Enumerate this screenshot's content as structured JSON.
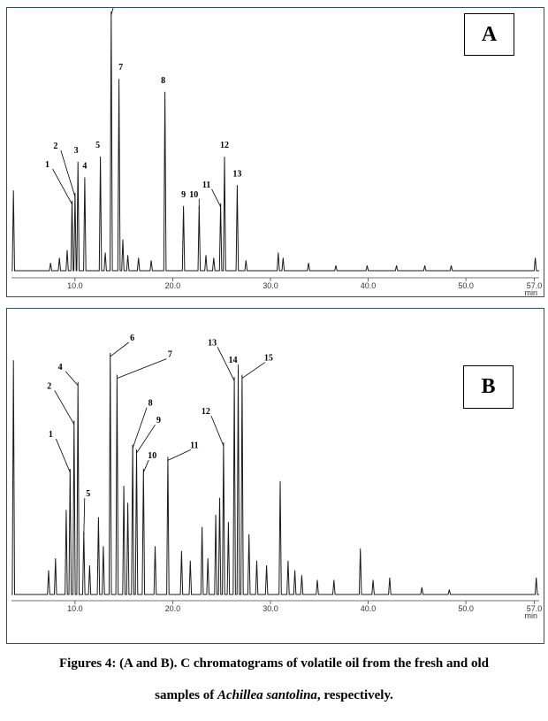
{
  "chart_data": [
    {
      "type": "line",
      "panel_label": "A",
      "x_unit_label": "min",
      "xlim": [
        3.5,
        57.5
      ],
      "x_ticks": [
        10.0,
        20.0,
        30.0,
        40.0,
        50.0,
        57.0
      ],
      "x_tick_labels": [
        "10.0",
        "20.0",
        "30.0",
        "40.0",
        "50.0",
        "57.0"
      ],
      "peaks": [
        {
          "label": "1",
          "rt": 9.7,
          "height": 0.27
        },
        {
          "label": "2",
          "rt": 10.0,
          "height": 0.3
        },
        {
          "label": "3",
          "rt": 10.3,
          "height": 0.42
        },
        {
          "label": "4",
          "rt": 11.0,
          "height": 0.36
        },
        {
          "label": "5",
          "rt": 12.6,
          "height": 0.44
        },
        {
          "label": "6",
          "rt": 13.7,
          "height": 1.0
        },
        {
          "label": "7",
          "rt": 14.5,
          "height": 0.74
        },
        {
          "label": "8",
          "rt": 19.2,
          "height": 0.69
        },
        {
          "label": "9",
          "rt": 21.1,
          "height": 0.25
        },
        {
          "label": "10",
          "rt": 22.7,
          "height": 0.25
        },
        {
          "label": "11",
          "rt": 24.9,
          "height": 0.26
        },
        {
          "label": "12",
          "rt": 25.3,
          "height": 0.44
        },
        {
          "label": "13",
          "rt": 26.6,
          "height": 0.33
        }
      ],
      "minor_peaks": [
        {
          "rt": 3.7,
          "height": 0.31
        },
        {
          "rt": 7.5,
          "height": 0.03
        },
        {
          "rt": 8.4,
          "height": 0.05
        },
        {
          "rt": 9.2,
          "height": 0.08
        },
        {
          "rt": 13.1,
          "height": 0.07
        },
        {
          "rt": 14.9,
          "height": 0.12
        },
        {
          "rt": 15.4,
          "height": 0.06
        },
        {
          "rt": 16.5,
          "height": 0.05
        },
        {
          "rt": 17.8,
          "height": 0.04
        },
        {
          "rt": 23.4,
          "height": 0.06
        },
        {
          "rt": 24.2,
          "height": 0.05
        },
        {
          "rt": 27.5,
          "height": 0.04
        },
        {
          "rt": 30.8,
          "height": 0.07
        },
        {
          "rt": 31.3,
          "height": 0.05
        },
        {
          "rt": 33.9,
          "height": 0.03
        },
        {
          "rt": 36.7,
          "height": 0.02
        },
        {
          "rt": 39.9,
          "height": 0.02
        },
        {
          "rt": 42.9,
          "height": 0.02
        },
        {
          "rt": 45.8,
          "height": 0.02
        },
        {
          "rt": 48.5,
          "height": 0.02
        },
        {
          "rt": 57.1,
          "height": 0.05
        }
      ]
    },
    {
      "type": "line",
      "panel_label": "B",
      "x_unit_label": "min",
      "xlim": [
        3.5,
        57.5
      ],
      "x_ticks": [
        10.0,
        20.0,
        30.0,
        40.0,
        50.0,
        57.0
      ],
      "x_tick_labels": [
        "10.0",
        "20.0",
        "30.0",
        "40.0",
        "50.0",
        "57.0"
      ],
      "peaks": [
        {
          "label": "1",
          "rt": 9.5,
          "height": 0.52
        },
        {
          "label": "2",
          "rt": 9.9,
          "height": 0.72
        },
        {
          "label": "4",
          "rt": 10.3,
          "height": 0.88
        },
        {
          "label": "5",
          "rt": 10.9,
          "height": 0.26
        },
        {
          "label": "6",
          "rt": 13.6,
          "height": 1.0
        },
        {
          "label": "7",
          "rt": 14.3,
          "height": 0.91
        },
        {
          "label": "8",
          "rt": 15.9,
          "height": 0.62
        },
        {
          "label": "9",
          "rt": 16.3,
          "height": 0.6
        },
        {
          "label": "10",
          "rt": 17.0,
          "height": 0.52
        },
        {
          "label": "11",
          "rt": 19.5,
          "height": 0.57
        },
        {
          "label": "12",
          "rt": 25.2,
          "height": 0.63
        },
        {
          "label": "13",
          "rt": 26.3,
          "height": 0.9
        },
        {
          "label": "14",
          "rt": 26.7,
          "height": 0.93
        },
        {
          "label": "15",
          "rt": 27.1,
          "height": 0.91
        }
      ],
      "minor_peaks": [
        {
          "rt": 3.7,
          "height": 0.97
        },
        {
          "rt": 7.3,
          "height": 0.1
        },
        {
          "rt": 8.0,
          "height": 0.15
        },
        {
          "rt": 9.1,
          "height": 0.35
        },
        {
          "rt": 11.5,
          "height": 0.12
        },
        {
          "rt": 12.4,
          "height": 0.32
        },
        {
          "rt": 12.9,
          "height": 0.2
        },
        {
          "rt": 15.0,
          "height": 0.45
        },
        {
          "rt": 15.4,
          "height": 0.38
        },
        {
          "rt": 18.2,
          "height": 0.2
        },
        {
          "rt": 20.9,
          "height": 0.18
        },
        {
          "rt": 21.8,
          "height": 0.14
        },
        {
          "rt": 23.0,
          "height": 0.28
        },
        {
          "rt": 23.6,
          "height": 0.15
        },
        {
          "rt": 24.4,
          "height": 0.33
        },
        {
          "rt": 24.8,
          "height": 0.4
        },
        {
          "rt": 25.7,
          "height": 0.3
        },
        {
          "rt": 27.8,
          "height": 0.25
        },
        {
          "rt": 28.6,
          "height": 0.14
        },
        {
          "rt": 29.6,
          "height": 0.12
        },
        {
          "rt": 31.0,
          "height": 0.47
        },
        {
          "rt": 31.8,
          "height": 0.14
        },
        {
          "rt": 32.5,
          "height": 0.1
        },
        {
          "rt": 33.2,
          "height": 0.08
        },
        {
          "rt": 34.8,
          "height": 0.06
        },
        {
          "rt": 36.5,
          "height": 0.06
        },
        {
          "rt": 39.2,
          "height": 0.19
        },
        {
          "rt": 40.5,
          "height": 0.06
        },
        {
          "rt": 42.2,
          "height": 0.07
        },
        {
          "rt": 45.5,
          "height": 0.03
        },
        {
          "rt": 48.3,
          "height": 0.02
        },
        {
          "rt": 57.2,
          "height": 0.07
        }
      ]
    }
  ],
  "caption": {
    "line1": "Figures 4: (A and B). C chromatograms of volatile oil from the fresh and old",
    "line2_before": "samples of ",
    "line2_species": "Achillea santolina",
    "line2_after": ", respectively."
  }
}
